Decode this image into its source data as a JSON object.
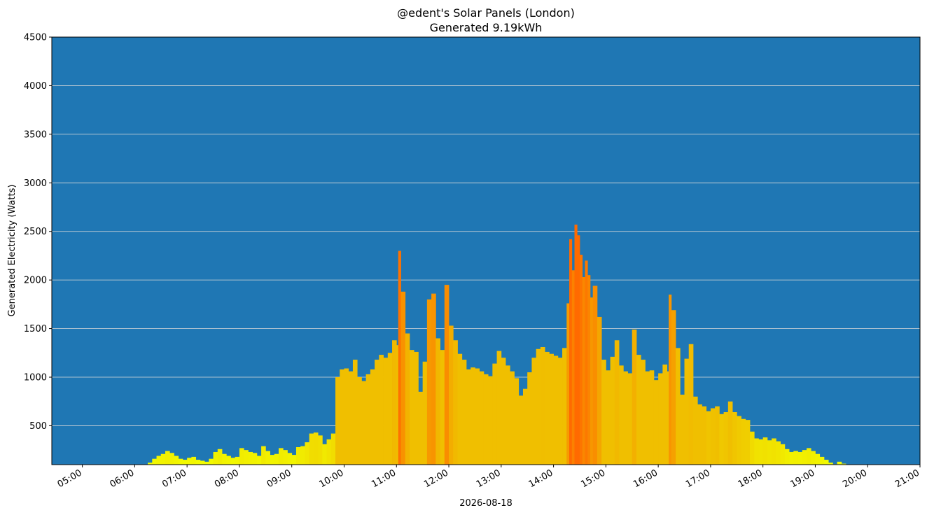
{
  "chart_data": {
    "type": "bar",
    "title": "@edent's Solar Panels (London)",
    "subtitle": "Generated 9.19kWh",
    "xlabel": "2026-08-18",
    "ylabel": "Generated Electricity (Watts)",
    "ylim": [
      100,
      4500
    ],
    "xlim": [
      "04:25",
      "21:00"
    ],
    "y_ticks": [
      500,
      1000,
      1500,
      2000,
      2500,
      3000,
      3500,
      4000,
      4500
    ],
    "x_ticks": [
      "05:00",
      "06:00",
      "07:00",
      "08:00",
      "09:00",
      "10:00",
      "11:00",
      "12:00",
      "13:00",
      "14:00",
      "15:00",
      "16:00",
      "17:00",
      "18:00",
      "19:00",
      "20:00",
      "21:00"
    ],
    "grid": "horizontal",
    "background_color": "#1f77b4",
    "grid_color": "#d9d9d9",
    "color_scale": {
      "low": "#f2ff00",
      "mid": "#f0bf00",
      "high": "#ff6a00"
    },
    "series": [
      {
        "points": [
          [
            "06:15",
            120
          ],
          [
            "06:20",
            160
          ],
          [
            "06:25",
            190
          ],
          [
            "06:30",
            210
          ],
          [
            "06:35",
            240
          ],
          [
            "06:40",
            220
          ],
          [
            "06:45",
            190
          ],
          [
            "06:50",
            160
          ],
          [
            "06:55",
            150
          ],
          [
            "07:00",
            170
          ],
          [
            "07:05",
            180
          ],
          [
            "07:10",
            150
          ],
          [
            "07:15",
            140
          ],
          [
            "07:20",
            130
          ],
          [
            "07:25",
            160
          ],
          [
            "07:30",
            230
          ],
          [
            "07:35",
            260
          ],
          [
            "07:40",
            210
          ],
          [
            "07:45",
            190
          ],
          [
            "07:50",
            170
          ],
          [
            "07:55",
            180
          ],
          [
            "08:00",
            270
          ],
          [
            "08:05",
            250
          ],
          [
            "08:10",
            230
          ],
          [
            "08:15",
            220
          ],
          [
            "08:20",
            190
          ],
          [
            "08:25",
            290
          ],
          [
            "08:30",
            240
          ],
          [
            "08:35",
            200
          ],
          [
            "08:40",
            210
          ],
          [
            "08:45",
            270
          ],
          [
            "08:50",
            250
          ],
          [
            "08:55",
            220
          ],
          [
            "09:00",
            200
          ],
          [
            "09:05",
            280
          ],
          [
            "09:10",
            290
          ],
          [
            "09:15",
            330
          ],
          [
            "09:20",
            420
          ],
          [
            "09:25",
            430
          ],
          [
            "09:30",
            400
          ],
          [
            "09:35",
            310
          ],
          [
            "09:40",
            360
          ],
          [
            "09:45",
            420
          ],
          [
            "09:50",
            1000
          ],
          [
            "09:55",
            1080
          ],
          [
            "10:00",
            1090
          ],
          [
            "10:05",
            1060
          ],
          [
            "10:10",
            1180
          ],
          [
            "10:15",
            1000
          ],
          [
            "10:20",
            960
          ],
          [
            "10:25",
            1030
          ],
          [
            "10:30",
            1080
          ],
          [
            "10:35",
            1180
          ],
          [
            "10:40",
            1230
          ],
          [
            "10:45",
            1200
          ],
          [
            "10:50",
            1250
          ],
          [
            "10:55",
            1380
          ],
          [
            "11:00",
            1330
          ],
          [
            "11:02",
            2300
          ],
          [
            "11:05",
            1880
          ],
          [
            "11:10",
            1450
          ],
          [
            "11:15",
            1280
          ],
          [
            "11:20",
            1260
          ],
          [
            "11:25",
            850
          ],
          [
            "11:30",
            1160
          ],
          [
            "11:35",
            1800
          ],
          [
            "11:40",
            1860
          ],
          [
            "11:45",
            1400
          ],
          [
            "11:50",
            1280
          ],
          [
            "11:55",
            1950
          ],
          [
            "12:00",
            1530
          ],
          [
            "12:05",
            1380
          ],
          [
            "12:10",
            1240
          ],
          [
            "12:15",
            1180
          ],
          [
            "12:20",
            1080
          ],
          [
            "12:25",
            1100
          ],
          [
            "12:30",
            1090
          ],
          [
            "12:35",
            1060
          ],
          [
            "12:40",
            1030
          ],
          [
            "12:45",
            1010
          ],
          [
            "12:50",
            1140
          ],
          [
            "12:55",
            1270
          ],
          [
            "13:00",
            1200
          ],
          [
            "13:05",
            1120
          ],
          [
            "13:10",
            1060
          ],
          [
            "13:15",
            990
          ],
          [
            "13:20",
            810
          ],
          [
            "13:25",
            880
          ],
          [
            "13:30",
            1050
          ],
          [
            "13:35",
            1200
          ],
          [
            "13:40",
            1290
          ],
          [
            "13:45",
            1310
          ],
          [
            "13:50",
            1260
          ],
          [
            "13:55",
            1240
          ],
          [
            "14:00",
            1220
          ],
          [
            "14:05",
            1200
          ],
          [
            "14:10",
            1300
          ],
          [
            "14:15",
            1760
          ],
          [
            "14:18",
            2420
          ],
          [
            "14:21",
            2100
          ],
          [
            "14:24",
            2570
          ],
          [
            "14:27",
            2460
          ],
          [
            "14:30",
            2260
          ],
          [
            "14:33",
            2030
          ],
          [
            "14:36",
            2200
          ],
          [
            "14:39",
            2050
          ],
          [
            "14:42",
            1820
          ],
          [
            "14:45",
            1940
          ],
          [
            "14:50",
            1620
          ],
          [
            "14:55",
            1180
          ],
          [
            "15:00",
            1070
          ],
          [
            "15:05",
            1210
          ],
          [
            "15:10",
            1380
          ],
          [
            "15:15",
            1120
          ],
          [
            "15:20",
            1060
          ],
          [
            "15:25",
            1040
          ],
          [
            "15:30",
            1490
          ],
          [
            "15:35",
            1230
          ],
          [
            "15:40",
            1180
          ],
          [
            "15:45",
            1060
          ],
          [
            "15:50",
            1070
          ],
          [
            "15:55",
            970
          ],
          [
            "16:00",
            1040
          ],
          [
            "16:05",
            1130
          ],
          [
            "16:10",
            1060
          ],
          [
            "16:12",
            1850
          ],
          [
            "16:15",
            1690
          ],
          [
            "16:20",
            1300
          ],
          [
            "16:25",
            820
          ],
          [
            "16:30",
            1190
          ],
          [
            "16:35",
            1340
          ],
          [
            "16:40",
            800
          ],
          [
            "16:45",
            720
          ],
          [
            "16:50",
            700
          ],
          [
            "16:55",
            650
          ],
          [
            "17:00",
            680
          ],
          [
            "17:05",
            700
          ],
          [
            "17:10",
            620
          ],
          [
            "17:15",
            640
          ],
          [
            "17:20",
            750
          ],
          [
            "17:25",
            640
          ],
          [
            "17:30",
            600
          ],
          [
            "17:35",
            570
          ],
          [
            "17:40",
            560
          ],
          [
            "17:45",
            440
          ],
          [
            "17:50",
            370
          ],
          [
            "17:55",
            360
          ],
          [
            "18:00",
            380
          ],
          [
            "18:05",
            350
          ],
          [
            "18:10",
            370
          ],
          [
            "18:15",
            340
          ],
          [
            "18:20",
            310
          ],
          [
            "18:25",
            260
          ],
          [
            "18:30",
            230
          ],
          [
            "18:35",
            240
          ],
          [
            "18:40",
            230
          ],
          [
            "18:45",
            250
          ],
          [
            "18:50",
            270
          ],
          [
            "18:55",
            240
          ],
          [
            "19:00",
            210
          ],
          [
            "19:05",
            180
          ],
          [
            "19:10",
            150
          ],
          [
            "19:15",
            120
          ],
          [
            "19:20",
            105
          ],
          [
            "19:25",
            130
          ],
          [
            "19:30",
            110
          ]
        ]
      }
    ]
  }
}
